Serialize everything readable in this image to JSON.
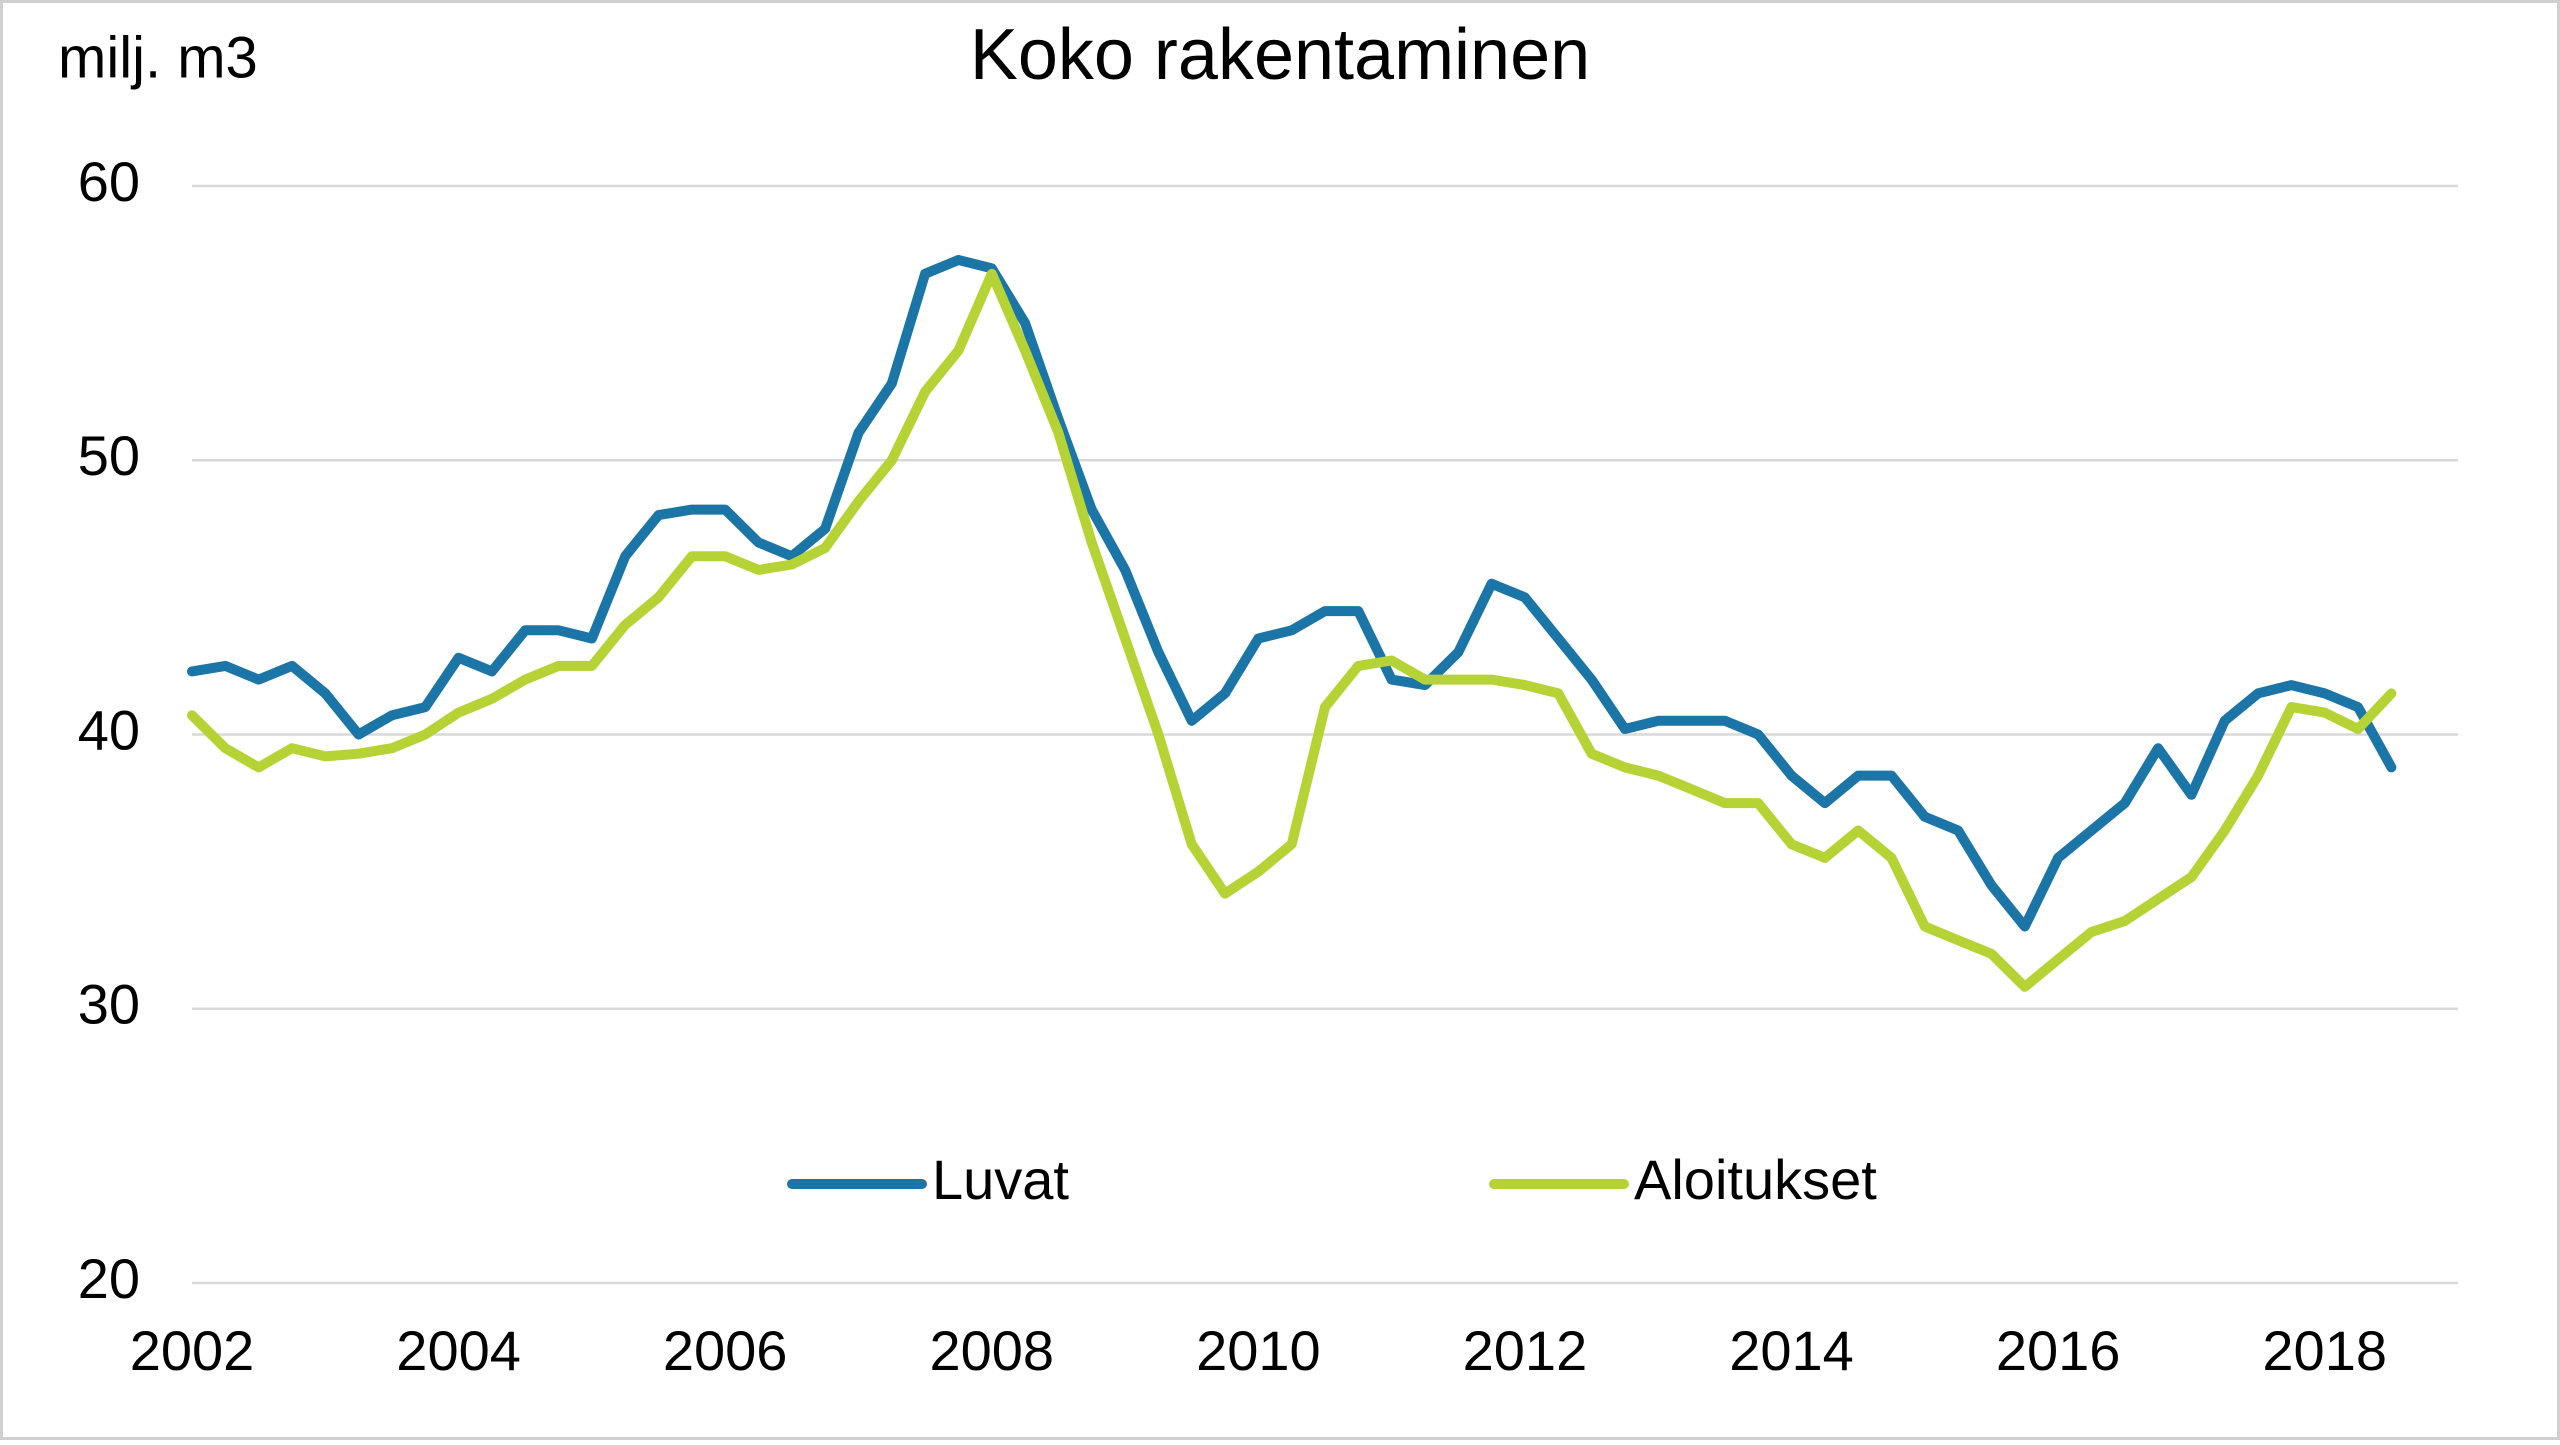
{
  "chart_data": {
    "type": "line",
    "title": "Koko rakentaminen",
    "ylabel": "milj. m3",
    "x": [
      2002,
      2002.25,
      2002.5,
      2002.75,
      2003,
      2003.25,
      2003.5,
      2003.75,
      2004,
      2004.25,
      2004.5,
      2004.75,
      2005,
      2005.25,
      2005.5,
      2005.75,
      2006,
      2006.25,
      2006.5,
      2006.75,
      2007,
      2007.25,
      2007.5,
      2007.75,
      2008,
      2008.25,
      2008.5,
      2008.75,
      2009,
      2009.25,
      2009.5,
      2009.75,
      2010,
      2010.25,
      2010.5,
      2010.75,
      2011,
      2011.25,
      2011.5,
      2011.75,
      2012,
      2012.25,
      2012.5,
      2012.75,
      2013,
      2013.25,
      2013.5,
      2013.75,
      2014,
      2014.25,
      2014.5,
      2014.75,
      2015,
      2015.25,
      2015.5,
      2015.75,
      2016,
      2016.25,
      2016.5,
      2016.75,
      2017,
      2017.25,
      2017.5,
      2017.75,
      2018,
      2018.25,
      2018.5
    ],
    "series": [
      {
        "name": "Luvat",
        "color": "#1b75a6",
        "values": [
          42.3,
          42.5,
          42.0,
          42.5,
          41.5,
          40.0,
          40.7,
          41.0,
          42.8,
          42.3,
          43.8,
          43.8,
          43.5,
          46.5,
          48.0,
          48.2,
          48.2,
          47.0,
          46.5,
          47.5,
          51.0,
          52.8,
          56.8,
          57.3,
          57.0,
          55.0,
          51.5,
          48.2,
          46.0,
          43.0,
          40.5,
          41.5,
          43.5,
          43.8,
          44.5,
          44.5,
          42.0,
          41.8,
          43.0,
          45.5,
          45.0,
          43.5,
          42.0,
          40.2,
          40.5,
          40.5,
          40.5,
          40.0,
          38.5,
          37.5,
          38.5,
          38.5,
          37.0,
          36.5,
          34.5,
          33.0,
          35.5,
          36.5,
          37.5,
          39.5,
          37.8,
          40.5,
          41.5,
          41.8,
          41.5,
          41.0,
          38.8
        ]
      },
      {
        "name": "Aloitukset",
        "color": "#b5d334",
        "values": [
          40.7,
          39.5,
          38.8,
          39.5,
          39.2,
          39.3,
          39.5,
          40.0,
          40.8,
          41.3,
          42.0,
          42.5,
          42.5,
          44.0,
          45.0,
          46.5,
          46.5,
          46.0,
          46.2,
          46.8,
          48.5,
          50.0,
          52.5,
          54.0,
          56.8,
          54.0,
          51.0,
          47.0,
          43.5,
          40.0,
          36.0,
          34.2,
          35.0,
          36.0,
          41.0,
          42.5,
          42.7,
          42.0,
          42.0,
          42.0,
          41.8,
          41.5,
          39.3,
          38.8,
          38.5,
          38.0,
          37.5,
          37.5,
          36.0,
          35.5,
          36.5,
          35.5,
          33.0,
          32.5,
          32.0,
          30.8,
          31.8,
          32.8,
          33.2,
          34.0,
          34.8,
          36.5,
          38.5,
          41.0,
          40.8,
          40.2,
          41.5
        ]
      }
    ],
    "xlim": [
      2002,
      2019
    ],
    "xticks": [
      2002,
      2004,
      2006,
      2008,
      2010,
      2012,
      2014,
      2016,
      2018
    ],
    "ylim": [
      20,
      60
    ],
    "yticks": [
      20,
      30,
      40,
      50,
      60
    ],
    "grid": true,
    "legend": "bottom"
  }
}
